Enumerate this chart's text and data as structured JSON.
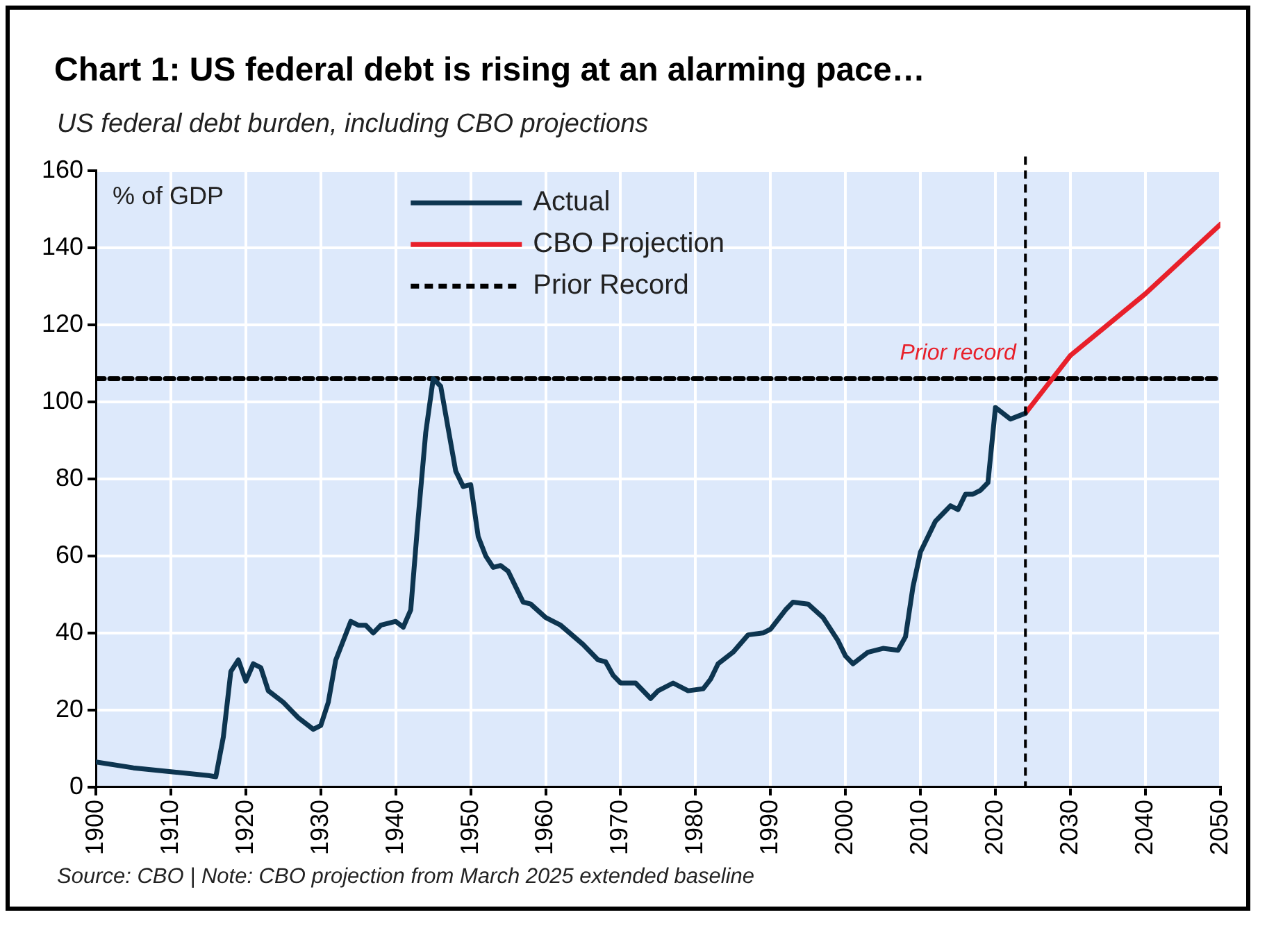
{
  "chart_data": {
    "type": "line",
    "title": "Chart 1: US federal debt is rising at an alarming pace…",
    "subtitle": "US federal debt burden, including CBO projections",
    "ylabel": "% of GDP",
    "xlim": [
      1900,
      2050
    ],
    "xticks": [
      1900,
      1910,
      1920,
      1930,
      1940,
      1950,
      1960,
      1970,
      1980,
      1990,
      2000,
      2010,
      2020,
      2030,
      2040,
      2050
    ],
    "ylim": [
      0,
      160
    ],
    "yticks": [
      0,
      20,
      40,
      60,
      80,
      100,
      120,
      140,
      160
    ],
    "grid": true,
    "legend": "top",
    "marker": "none",
    "series": [
      {
        "name": "Actual",
        "color": "#0d3550",
        "line_style": "solid",
        "x": [
          1900,
          1905,
          1910,
          1915,
          1916,
          1917,
          1918,
          1919,
          1920,
          1921,
          1922,
          1923,
          1925,
          1927,
          1929,
          1930,
          1931,
          1932,
          1934,
          1935,
          1936,
          1937,
          1938,
          1940,
          1941,
          1942,
          1943,
          1944,
          1945,
          1946,
          1947,
          1948,
          1949,
          1950,
          1951,
          1952,
          1953,
          1954,
          1955,
          1957,
          1958,
          1960,
          1962,
          1965,
          1967,
          1968,
          1969,
          1970,
          1972,
          1974,
          1975,
          1977,
          1979,
          1981,
          1982,
          1983,
          1985,
          1987,
          1989,
          1990,
          1992,
          1993,
          1995,
          1997,
          1999,
          2000,
          2001,
          2003,
          2005,
          2007,
          2008,
          2009,
          2010,
          2012,
          2013,
          2014,
          2015,
          2016,
          2017,
          2018,
          2019,
          2020,
          2022,
          2024
        ],
        "values": [
          6.5,
          5,
          4,
          3,
          2.7,
          13,
          30,
          33,
          27.5,
          32,
          31,
          25,
          22,
          18,
          15,
          16,
          22,
          33,
          43,
          42,
          42,
          40,
          42,
          43,
          41.5,
          46,
          70,
          92,
          106,
          104,
          93,
          82,
          78,
          78.5,
          65,
          60,
          57,
          57.5,
          56,
          48,
          47.5,
          44,
          42,
          37,
          33,
          32.5,
          29,
          27,
          27,
          23,
          25,
          27,
          25,
          25.5,
          28,
          32,
          35,
          39.5,
          40,
          41,
          46,
          48,
          47.5,
          44,
          38,
          34,
          32,
          35,
          36,
          35.5,
          39,
          52,
          61,
          69,
          71,
          73,
          72,
          76,
          76,
          77,
          79,
          98.5,
          95.5,
          97
        ]
      },
      {
        "name": "CBO Projection",
        "color": "#e8202a",
        "line_style": "solid",
        "x": [
          2024,
          2030,
          2035,
          2040,
          2045,
          2050
        ],
        "values": [
          97,
          112,
          120,
          128,
          137,
          146
        ]
      },
      {
        "name": "Prior Record",
        "color": "#000000",
        "line_style": "dashed",
        "x": [
          1900,
          2050
        ],
        "values": [
          106,
          106
        ]
      }
    ],
    "ref_lines": [
      {
        "axis": "x",
        "value": 2024,
        "color": "#000000",
        "line_style": "dashed"
      }
    ],
    "annotations": [
      {
        "text": "Prior record",
        "x": 2015,
        "y": 106
      },
      "Source: CBO | Note: CBO projection from March 2025 extended baseline"
    ]
  }
}
